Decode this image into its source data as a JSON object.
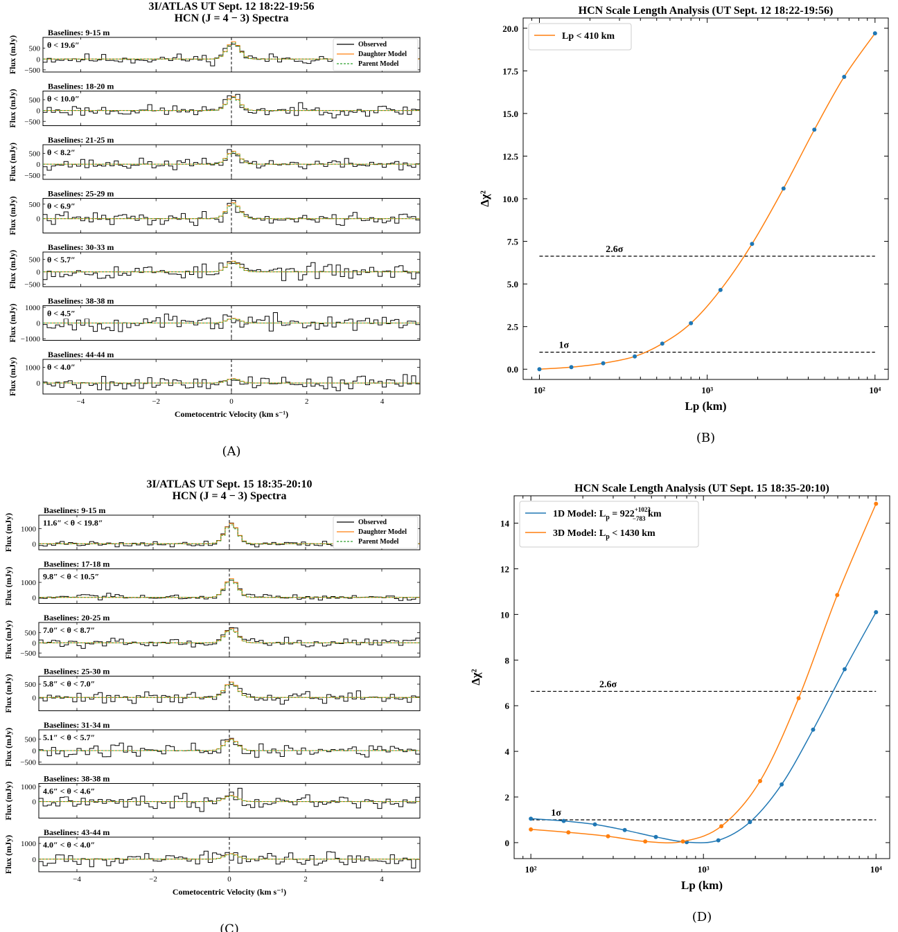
{
  "chart_data": [
    {
      "id": "A",
      "type": "line",
      "caption": "(A)",
      "title_line1": "3I/ATLAS  UT Sept. 12 18:22-19:56",
      "title_line2": "HCN (J = 4 − 3) Spectra",
      "xlabel": "Cometocentric Velocity (km s⁻¹)",
      "ylabel": "Flux (mJy)",
      "xlim": [
        -5,
        5
      ],
      "xticks": [
        -4,
        -2,
        0,
        2,
        4
      ],
      "legend": [
        "Observed",
        "Daughter Model",
        "Parent Model"
      ],
      "legend_position": "top-right of first panel",
      "rows": [
        {
          "baselines": "Baselines: 9-15 m",
          "theta": "θ < 19.6″",
          "ylim": [
            -600,
            1000
          ],
          "yticks": [
            -500,
            0,
            500
          ],
          "peak": 800,
          "noise": 180,
          "seed": 11
        },
        {
          "baselines": "Baselines: 18-20 m",
          "theta": "θ < 10.0″",
          "ylim": [
            -700,
            900
          ],
          "yticks": [
            -500,
            0,
            500
          ],
          "peak": 650,
          "noise": 200,
          "seed": 23
        },
        {
          "baselines": "Baselines: 21-25 m",
          "theta": "θ < 8.2″",
          "ylim": [
            -700,
            900
          ],
          "yticks": [
            -500,
            0,
            500
          ],
          "peak": 600,
          "noise": 190,
          "seed": 37
        },
        {
          "baselines": "Baselines: 25-29 m",
          "theta": "θ < 6.9″",
          "ylim": [
            -500,
            700
          ],
          "yticks": [
            0,
            500
          ],
          "peak": 550,
          "noise": 170,
          "seed": 41
        },
        {
          "baselines": "Baselines: 30-33 m",
          "theta": "θ < 5.7″",
          "ylim": [
            -600,
            800
          ],
          "yticks": [
            -500,
            0,
            500
          ],
          "peak": 430,
          "noise": 230,
          "seed": 53
        },
        {
          "baselines": "Baselines: 38-38 m",
          "theta": "θ < 4.5″",
          "ylim": [
            -1100,
            1100
          ],
          "yticks": [
            -1000,
            0,
            1000
          ],
          "peak": 300,
          "noise": 380,
          "seed": 67
        },
        {
          "baselines": "Baselines: 44-44 m",
          "theta": "θ < 4.0″",
          "ylim": [
            -700,
            1500
          ],
          "yticks": [
            0,
            1000
          ],
          "peak": 280,
          "noise": 370,
          "seed": 79
        }
      ]
    },
    {
      "id": "B",
      "type": "line",
      "caption": "(B)",
      "title": "HCN Scale Length Analysis (UT Sept. 12 18:22-19:56)",
      "xlabel": "Lp (km)",
      "ylabel": "Δχ²",
      "xscale": "log",
      "xlim": [
        80,
        12000
      ],
      "ylim": [
        -0.6,
        20.6
      ],
      "xticks_labels": [
        "10²",
        "10³",
        "10⁴"
      ],
      "xticks": [
        100,
        1000,
        10000
      ],
      "yticks": [
        0.0,
        2.5,
        5.0,
        7.5,
        10.0,
        12.5,
        15.0,
        17.5,
        20.0
      ],
      "ytick_labels": [
        "0.0",
        "2.5",
        "5.0",
        "7.5",
        "10.0",
        "12.5",
        "15.0",
        "17.5",
        "20.0"
      ],
      "legend_position": "top-left",
      "series": [
        {
          "name": "Lp < 410 km",
          "color": "#ff7f0e",
          "point_color": "#1f77b4",
          "x": [
            100,
            155,
            240,
            370,
            540,
            800,
            1200,
            1850,
            2850,
            4350,
            6550,
            10000
          ],
          "y": [
            0.0,
            0.12,
            0.35,
            0.75,
            1.5,
            2.7,
            4.65,
            7.35,
            10.6,
            14.05,
            17.15,
            19.7
          ]
        }
      ],
      "hlines": [
        {
          "y": 6.63,
          "label": "2.6σ"
        },
        {
          "y": 1.0,
          "label": "1σ"
        }
      ]
    },
    {
      "id": "C",
      "type": "line",
      "caption": "(C)",
      "title_line1": "3I/ATLAS  UT Sept. 15 18:35-20:10",
      "title_line2": "HCN (J = 4 − 3) Spectra",
      "xlabel": "Cometocentric Velocity (km s⁻¹)",
      "ylabel": "Flux (mJy)",
      "xlim": [
        -5,
        5
      ],
      "xticks": [
        -4,
        -2,
        0,
        2,
        4
      ],
      "legend": [
        "Observed",
        "Daughter Model",
        "Parent Model"
      ],
      "legend_position": "top-right of first panel",
      "rows": [
        {
          "baselines": "Baselines: 9-15 m",
          "theta": "11.6″ < θ < 19.8″",
          "ylim": [
            -400,
            1900
          ],
          "yticks": [
            0,
            1000
          ],
          "peak": 1350,
          "noise": 150,
          "seed": 91
        },
        {
          "baselines": "Baselines: 17-18 m",
          "theta": "9.8″ < θ < 10.5″",
          "ylim": [
            -400,
            1900
          ],
          "yticks": [
            0,
            1000
          ],
          "peak": 1250,
          "noise": 150,
          "seed": 103
        },
        {
          "baselines": "Baselines: 20-25 m",
          "theta": "7.0″ < θ < 8.7″",
          "ylim": [
            -700,
            1000
          ],
          "yticks": [
            -500,
            0,
            500
          ],
          "peak": 700,
          "noise": 180,
          "seed": 117
        },
        {
          "baselines": "Baselines: 25-30 m",
          "theta": "5.8″ < θ < 7.0″",
          "ylim": [
            -500,
            800
          ],
          "yticks": [
            0,
            500
          ],
          "peak": 580,
          "noise": 160,
          "seed": 129
        },
        {
          "baselines": "Baselines: 31-34 m",
          "theta": "5.1″ < θ < 5.7″",
          "ylim": [
            -600,
            900
          ],
          "yticks": [
            -500,
            0,
            500
          ],
          "peak": 500,
          "noise": 230,
          "seed": 137
        },
        {
          "baselines": "Baselines: 38-38 m",
          "theta": "4.6″ < θ < 4.6″",
          "ylim": [
            -1100,
            1200
          ],
          "yticks": [
            0,
            1000
          ],
          "peak": 400,
          "noise": 380,
          "seed": 149
        },
        {
          "baselines": "Baselines: 43-44 m",
          "theta": "4.0″ < θ < 4.0″",
          "ylim": [
            -800,
            1400
          ],
          "yticks": [
            0,
            1000
          ],
          "peak": 350,
          "noise": 320,
          "seed": 157
        }
      ]
    },
    {
      "id": "D",
      "type": "line",
      "caption": "(D)",
      "title": "HCN Scale Length Analysis (UT Sept. 15 18:35-20:10)",
      "xlabel": "Lp (km)",
      "ylabel": "Δχ²",
      "xscale": "log",
      "xlim": [
        80,
        12000
      ],
      "ylim": [
        -0.7,
        15.2
      ],
      "xticks_labels": [
        "10²",
        "10³",
        "10⁴"
      ],
      "xticks": [
        100,
        1000,
        10000
      ],
      "yticks": [
        0,
        2,
        4,
        6,
        8,
        10,
        12,
        14
      ],
      "ytick_labels": [
        "0",
        "2",
        "4",
        "6",
        "8",
        "10",
        "12",
        "14"
      ],
      "legend_position": "top-left",
      "series": [
        {
          "name": "1D Model: Lp = 922 (+1023 / −783) km",
          "label_main": "1D Model: L",
          "label_sub": "p",
          "label_rest": " = 922",
          "label_sup": "+1023",
          "label_low": "−783",
          "label_unit": " km",
          "color": "#1f77b4",
          "x": [
            100,
            155,
            235,
            350,
            530,
            800,
            1220,
            1860,
            2840,
            4320,
            6580,
            10000
          ],
          "y": [
            1.05,
            0.95,
            0.8,
            0.55,
            0.25,
            0.02,
            0.1,
            0.9,
            2.55,
            4.95,
            7.6,
            10.1
          ]
        },
        {
          "name": "3D Model: Lp < 1430 km",
          "label_main": "3D Model: L",
          "label_sub": "p",
          "label_rest": " < 1430 km",
          "color": "#ff7f0e",
          "x": [
            100,
            165,
            280,
            460,
            760,
            1270,
            2130,
            3560,
            5960,
            10000
          ],
          "y": [
            0.58,
            0.45,
            0.28,
            0.05,
            0.05,
            0.72,
            2.7,
            6.33,
            10.85,
            14.85
          ]
        }
      ],
      "hlines": [
        {
          "y": 6.63,
          "label": "2.6σ"
        },
        {
          "y": 1.0,
          "label": "1σ"
        }
      ]
    }
  ]
}
